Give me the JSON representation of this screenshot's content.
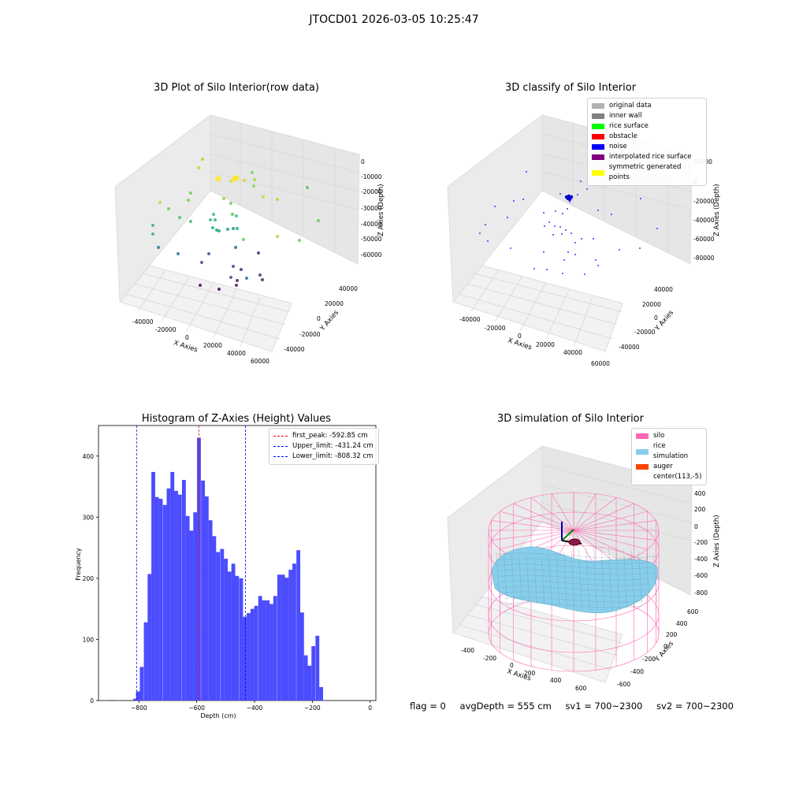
{
  "figure": {
    "title": "JTOCD01 2026-03-05 10:25:47",
    "status": {
      "flag": "flag = 0",
      "avg_depth": "avgDepth = 555 cm",
      "sv1": "sv1 = 700~2300",
      "sv2": "sv2 = 700~2300"
    }
  },
  "chart_data": [
    {
      "type": "scatter3d",
      "title": "3D Plot of Silo Interior(row data)",
      "xlabel": "X Axies",
      "ylabel": "Y Axies",
      "zlabel": "Z Axies (Depth)",
      "x_ticks": [
        "-40000",
        "-20000",
        "0",
        "20000",
        "40000",
        "60000"
      ],
      "y_ticks": [
        "-40000",
        "-20000",
        "0",
        "20000",
        "40000"
      ],
      "z_ticks": [
        "0",
        "-10000",
        "-20000",
        "-30000",
        "-40000",
        "-50000",
        "-60000"
      ],
      "colormap": "viridis",
      "note_values": "approximate point cloud coloured by depth"
    },
    {
      "type": "scatter3d",
      "title": "3D classify of Silo Interior",
      "xlabel": "X Axies",
      "ylabel": "Y Axies",
      "zlabel": "Z Axies (Depth)",
      "x_ticks": [
        "-40000",
        "-20000",
        "0",
        "20000",
        "40000",
        "60000"
      ],
      "y_ticks": [
        "-40000",
        "-20000",
        "0",
        "20000",
        "40000"
      ],
      "z_ticks": [
        "20000",
        "0",
        "-20000",
        "-40000",
        "-60000",
        "-80000"
      ],
      "legend": [
        {
          "label": "original data",
          "color": "#b3b3b3"
        },
        {
          "label": "inner wall",
          "color": "#808080"
        },
        {
          "label": "rice surface",
          "color": "#00ff00"
        },
        {
          "label": "obstacle",
          "color": "#ff0000"
        },
        {
          "label": "noise",
          "color": "#0000ff"
        },
        {
          "label": "interpolated rice surface",
          "color": "#800080"
        },
        {
          "label": "symmetric generated points",
          "color": "#ffff00"
        }
      ]
    },
    {
      "type": "bar",
      "title": "Histogram of Z-Axies (Height) Values",
      "xlabel": "Depth (cm)",
      "ylabel": "Frequency",
      "xlim": [
        -940,
        20
      ],
      "ylim": [
        0,
        450
      ],
      "x_ticks": [
        -800,
        -600,
        -400,
        -200,
        0
      ],
      "y_ticks": [
        0,
        100,
        200,
        300,
        400
      ],
      "bar_color": "#4c4cff",
      "bin_width": 13.2,
      "bins": [
        [
          -900,
          1
        ],
        [
          -820,
          3
        ],
        [
          -810,
          15
        ],
        [
          -797,
          55
        ],
        [
          -783,
          128
        ],
        [
          -770,
          207
        ],
        [
          -757,
          374
        ],
        [
          -744,
          333
        ],
        [
          -731,
          330
        ],
        [
          -717,
          320
        ],
        [
          -704,
          347
        ],
        [
          -691,
          374
        ],
        [
          -678,
          343
        ],
        [
          -665,
          337
        ],
        [
          -651,
          361
        ],
        [
          -638,
          302
        ],
        [
          -625,
          278
        ],
        [
          -612,
          308
        ],
        [
          -599,
          430
        ],
        [
          -585,
          360
        ],
        [
          -572,
          334
        ],
        [
          -559,
          295
        ],
        [
          -546,
          269
        ],
        [
          -533,
          243
        ],
        [
          -519,
          248
        ],
        [
          -506,
          232
        ],
        [
          -493,
          211
        ],
        [
          -480,
          224
        ],
        [
          -467,
          204
        ],
        [
          -453,
          200
        ],
        [
          -440,
          137
        ],
        [
          -427,
          143
        ],
        [
          -414,
          150
        ],
        [
          -401,
          155
        ],
        [
          -387,
          171
        ],
        [
          -374,
          164
        ],
        [
          -361,
          164
        ],
        [
          -348,
          158
        ],
        [
          -335,
          171
        ],
        [
          -321,
          206
        ],
        [
          -308,
          206
        ],
        [
          -295,
          201
        ],
        [
          -282,
          214
        ],
        [
          -269,
          224
        ],
        [
          -255,
          246
        ],
        [
          -242,
          144
        ],
        [
          -229,
          74
        ],
        [
          -216,
          57
        ],
        [
          -203,
          89
        ],
        [
          -189,
          106
        ],
        [
          -176,
          22
        ]
      ],
      "reference_lines": [
        {
          "label": "first_peak: -592.85 cm",
          "value": -592.85,
          "color": "#ff0000"
        },
        {
          "label": "Upper_limit: -431.24 cm",
          "value": -431.24,
          "color": "#0000ff"
        },
        {
          "label": "Lower_limit: -808.32 cm",
          "value": -808.32,
          "color": "#0000ff"
        }
      ]
    },
    {
      "type": "surface3d",
      "title": "3D simulation of Silo Interior",
      "xlabel": "X Axies",
      "ylabel": "Y Axies",
      "zlabel": "Z Axies (Depth)",
      "x_ticks": [
        "-400",
        "-200",
        "0",
        "200",
        "400",
        "600"
      ],
      "y_ticks": [
        "-600",
        "-400",
        "-200",
        "0",
        "200",
        "400",
        "600"
      ],
      "z_ticks": [
        "400",
        "200",
        "0",
        "-200",
        "-400",
        "-600",
        "-800"
      ],
      "legend": [
        {
          "label": "silo",
          "color": "#ff69b4"
        },
        {
          "label": "rice simulation",
          "color": "#87ceeb"
        },
        {
          "label": "auger",
          "color": "#ff4500"
        },
        {
          "label": "center(113,-5)",
          "color": "#ffffff"
        }
      ]
    }
  ]
}
